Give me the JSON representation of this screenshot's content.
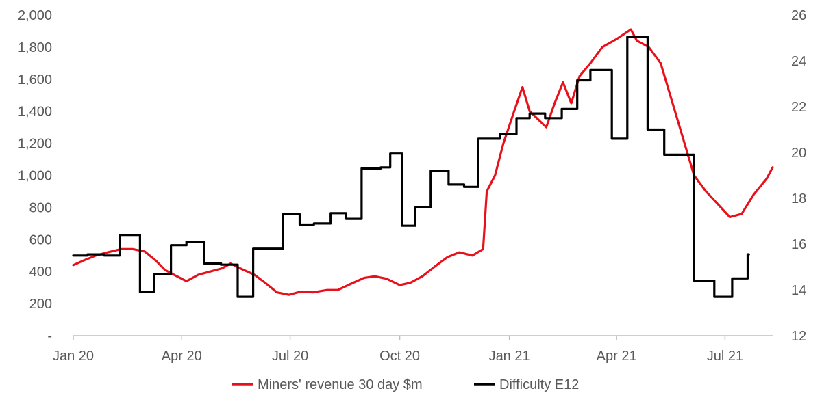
{
  "chart_data": {
    "type": "line",
    "title": "",
    "xlabel": "",
    "ylabel": "",
    "y_axis_left": {
      "range": [
        0,
        2000
      ],
      "ticks": [
        0,
        200,
        400,
        600,
        800,
        1000,
        1200,
        1400,
        1600,
        1800,
        2000
      ],
      "tick_labels": [
        "-",
        "200",
        "400",
        "600",
        "800",
        "1,000",
        "1,200",
        "1,400",
        "1,600",
        "1,800",
        "2,000"
      ]
    },
    "y_axis_right": {
      "range": [
        12,
        26
      ],
      "ticks": [
        12,
        14,
        16,
        18,
        20,
        22,
        24,
        26
      ],
      "tick_labels": [
        "12",
        "14",
        "16",
        "18",
        "20",
        "22",
        "24",
        "26"
      ]
    },
    "x_axis": {
      "range": [
        "2020-01-01",
        "2021-08-10"
      ],
      "ticks": [
        "2020-01-01",
        "2020-04-01",
        "2020-07-01",
        "2020-10-01",
        "2021-01-01",
        "2021-04-01",
        "2021-07-01"
      ],
      "tick_labels": [
        "Jan 20",
        "Apr 20",
        "Jul 20",
        "Oct 20",
        "Jan 21",
        "Apr 21",
        "Jul 21"
      ]
    },
    "grid": false,
    "legend_position": "bottom",
    "series": [
      {
        "name": "Miners' revenue 30 day $m",
        "axis": "left",
        "color": "#e8111b",
        "points": [
          [
            "2020-01-01",
            440
          ],
          [
            "2020-01-10",
            470
          ],
          [
            "2020-01-20",
            500
          ],
          [
            "2020-01-30",
            520
          ],
          [
            "2020-02-10",
            540
          ],
          [
            "2020-02-20",
            540
          ],
          [
            "2020-03-01",
            525
          ],
          [
            "2020-03-10",
            470
          ],
          [
            "2020-03-18",
            410
          ],
          [
            "2020-03-28",
            370
          ],
          [
            "2020-04-05",
            340
          ],
          [
            "2020-04-15",
            380
          ],
          [
            "2020-04-25",
            400
          ],
          [
            "2020-05-05",
            420
          ],
          [
            "2020-05-12",
            450
          ],
          [
            "2020-05-20",
            420
          ],
          [
            "2020-06-01",
            380
          ],
          [
            "2020-06-10",
            330
          ],
          [
            "2020-06-20",
            270
          ],
          [
            "2020-06-30",
            255
          ],
          [
            "2020-07-10",
            275
          ],
          [
            "2020-07-20",
            270
          ],
          [
            "2020-08-01",
            285
          ],
          [
            "2020-08-10",
            285
          ],
          [
            "2020-08-20",
            320
          ],
          [
            "2020-09-01",
            360
          ],
          [
            "2020-09-10",
            370
          ],
          [
            "2020-09-20",
            355
          ],
          [
            "2020-10-01",
            315
          ],
          [
            "2020-10-10",
            330
          ],
          [
            "2020-10-20",
            370
          ],
          [
            "2020-11-01",
            440
          ],
          [
            "2020-11-10",
            490
          ],
          [
            "2020-11-20",
            520
          ],
          [
            "2020-12-01",
            500
          ],
          [
            "2020-12-10",
            540
          ],
          [
            "2020-12-13",
            900
          ],
          [
            "2020-12-20",
            1000
          ],
          [
            "2020-12-27",
            1200
          ],
          [
            "2021-01-05",
            1400
          ],
          [
            "2021-01-12",
            1550
          ],
          [
            "2021-01-18",
            1400
          ],
          [
            "2021-01-25",
            1350
          ],
          [
            "2021-02-01",
            1300
          ],
          [
            "2021-02-08",
            1450
          ],
          [
            "2021-02-15",
            1580
          ],
          [
            "2021-02-22",
            1450
          ],
          [
            "2021-03-01",
            1620
          ],
          [
            "2021-03-10",
            1700
          ],
          [
            "2021-03-20",
            1800
          ],
          [
            "2021-04-01",
            1850
          ],
          [
            "2021-04-13",
            1910
          ],
          [
            "2021-04-18",
            1840
          ],
          [
            "2021-04-28",
            1800
          ],
          [
            "2021-05-08",
            1700
          ],
          [
            "2021-05-18",
            1450
          ],
          [
            "2021-05-28",
            1200
          ],
          [
            "2021-06-05",
            1000
          ],
          [
            "2021-06-15",
            900
          ],
          [
            "2021-06-25",
            820
          ],
          [
            "2021-07-05",
            740
          ],
          [
            "2021-07-15",
            760
          ],
          [
            "2021-07-25",
            880
          ],
          [
            "2021-08-05",
            980
          ],
          [
            "2021-08-10",
            1050
          ]
        ]
      },
      {
        "name": "Difficulty E12",
        "axis": "right",
        "color": "#000000",
        "step": true,
        "points": [
          [
            "2020-01-01",
            15.5
          ],
          [
            "2020-01-13",
            15.55
          ],
          [
            "2020-01-27",
            15.5
          ],
          [
            "2020-02-09",
            16.4
          ],
          [
            "2020-02-26",
            13.9
          ],
          [
            "2020-03-09",
            14.7
          ],
          [
            "2020-03-23",
            15.95
          ],
          [
            "2020-04-05",
            16.1
          ],
          [
            "2020-04-20",
            15.15
          ],
          [
            "2020-05-04",
            15.1
          ],
          [
            "2020-05-18",
            13.7
          ],
          [
            "2020-05-31",
            15.8
          ],
          [
            "2020-06-14",
            15.8
          ],
          [
            "2020-06-25",
            17.3
          ],
          [
            "2020-07-09",
            16.85
          ],
          [
            "2020-07-21",
            16.9
          ],
          [
            "2020-08-04",
            17.35
          ],
          [
            "2020-08-17",
            17.1
          ],
          [
            "2020-08-30",
            19.3
          ],
          [
            "2020-09-15",
            19.35
          ],
          [
            "2020-09-23",
            19.95
          ],
          [
            "2020-10-03",
            16.8
          ],
          [
            "2020-10-14",
            17.6
          ],
          [
            "2020-10-27",
            19.2
          ],
          [
            "2020-11-11",
            18.6
          ],
          [
            "2020-11-24",
            18.5
          ],
          [
            "2020-12-06",
            20.6
          ],
          [
            "2020-12-24",
            20.8
          ],
          [
            "2021-01-07",
            21.5
          ],
          [
            "2021-01-18",
            21.7
          ],
          [
            "2021-01-31",
            21.5
          ],
          [
            "2021-02-14",
            21.9
          ],
          [
            "2021-02-27",
            23.15
          ],
          [
            "2021-03-10",
            23.6
          ],
          [
            "2021-03-28",
            20.6
          ],
          [
            "2021-04-10",
            25.05
          ],
          [
            "2021-04-27",
            21.0
          ],
          [
            "2021-05-11",
            19.9
          ],
          [
            "2021-05-25",
            19.9
          ],
          [
            "2021-06-05",
            14.4
          ],
          [
            "2021-06-22",
            13.7
          ],
          [
            "2021-07-07",
            14.5
          ],
          [
            "2021-07-20",
            15.55
          ],
          [
            "2021-07-21",
            15.55
          ]
        ]
      }
    ]
  }
}
